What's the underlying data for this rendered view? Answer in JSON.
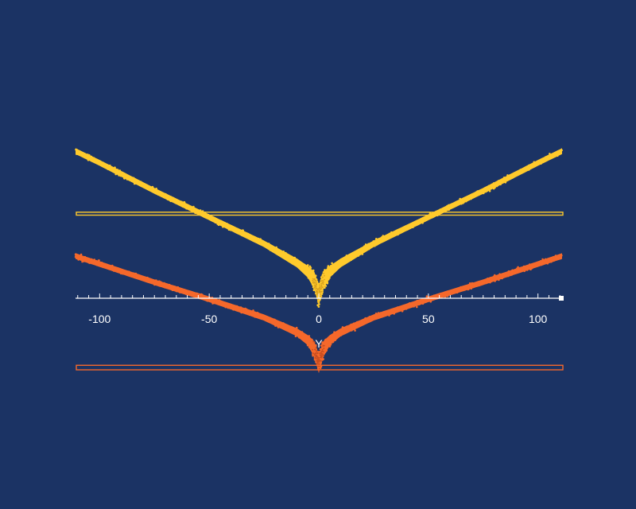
{
  "chart_data": {
    "type": "scatter",
    "title": "",
    "xlabel": "Y",
    "ylabel": "",
    "xlim": [
      -111,
      111
    ],
    "x_ticks": [
      "-100",
      "-50",
      "0",
      "50",
      "100"
    ],
    "x_tick_values": [
      -100,
      -50,
      0,
      50,
      100
    ],
    "grid": false,
    "legend": "none",
    "series": [
      {
        "color": "#ffca2c",
        "envelope": {
          "x": [
            -111,
            -100,
            -75,
            -50,
            -25,
            -10,
            -5,
            -2,
            0,
            2,
            5,
            10,
            25,
            50,
            75,
            100,
            111
          ],
          "center": [
            1.0,
            0.92,
            0.73,
            0.55,
            0.37,
            0.24,
            0.18,
            0.12,
            0.02,
            0.12,
            0.18,
            0.24,
            0.37,
            0.55,
            0.73,
            0.92,
            1.0
          ],
          "spread": [
            0.04,
            0.04,
            0.04,
            0.04,
            0.045,
            0.06,
            0.08,
            0.12,
            0.14,
            0.12,
            0.08,
            0.06,
            0.045,
            0.04,
            0.04,
            0.04,
            0.04
          ]
        },
        "selection_band": [
          0.565,
          0.585
        ]
      },
      {
        "color": "#f5682b",
        "envelope": {
          "x": [
            -111,
            -100,
            -75,
            -50,
            -25,
            -10,
            -5,
            -2,
            0,
            2,
            5,
            10,
            25,
            50,
            75,
            100,
            111
          ],
          "center": [
            1.0,
            0.93,
            0.77,
            0.62,
            0.46,
            0.33,
            0.26,
            0.18,
            0.05,
            0.18,
            0.26,
            0.33,
            0.46,
            0.62,
            0.77,
            0.93,
            1.0
          ],
          "spread": [
            0.05,
            0.05,
            0.05,
            0.05,
            0.055,
            0.07,
            0.09,
            0.14,
            0.16,
            0.14,
            0.09,
            0.07,
            0.055,
            0.05,
            0.05,
            0.05,
            0.05
          ]
        },
        "selection_band": [
          0.0,
          0.04
        ]
      }
    ]
  }
}
